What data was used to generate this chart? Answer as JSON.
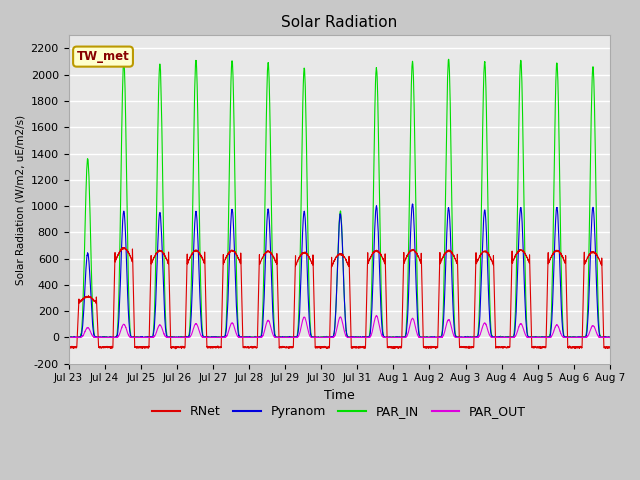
{
  "title": "Solar Radiation",
  "ylabel": "Solar Radiation (W/m2, uE/m2/s)",
  "xlabel": "Time",
  "ylim": [
    -200,
    2300
  ],
  "yticks": [
    -200,
    0,
    200,
    400,
    600,
    800,
    1000,
    1200,
    1400,
    1600,
    1800,
    2000,
    2200
  ],
  "fig_bg_color": "#c8c8c8",
  "plot_bg_color": "#e8e8e8",
  "line_colors": {
    "RNet": "#dd0000",
    "Pyranom": "#0000dd",
    "PAR_IN": "#00dd00",
    "PAR_OUT": "#dd00dd"
  },
  "legend_box_color": "#ffffcc",
  "legend_box_edge": "#bb9900",
  "station_label": "TW_met",
  "station_label_color": "#880000",
  "n_days": 15,
  "xtick_labels": [
    "Jul 23",
    "Jul 24",
    "Jul 25",
    "Jul 26",
    "Jul 27",
    "Jul 28",
    "Jul 29",
    "Jul 30",
    "Jul 31",
    "Aug 1",
    "Aug 2",
    "Aug 3",
    "Aug 4",
    "Aug 5",
    "Aug 6",
    "Aug 7"
  ],
  "PAR_IN_peaks": [
    1360,
    2100,
    2080,
    2110,
    2110,
    2090,
    2050,
    960,
    2050,
    2100,
    2120,
    2100,
    2110,
    2090,
    2060
  ],
  "Pyranom_peaks": [
    640,
    960,
    950,
    960,
    975,
    975,
    960,
    940,
    1000,
    1015,
    985,
    970,
    990,
    990,
    990
  ],
  "RNet_peaks": [
    310,
    680,
    660,
    660,
    660,
    655,
    645,
    635,
    660,
    665,
    660,
    655,
    665,
    660,
    650
  ],
  "PAR_OUT_peaks": [
    75,
    100,
    95,
    105,
    110,
    130,
    155,
    155,
    165,
    145,
    135,
    110,
    105,
    95,
    90
  ],
  "RNet_night": -75,
  "day_start": 7.0,
  "day_end": 18.5,
  "peak_sharpness": 4.0
}
